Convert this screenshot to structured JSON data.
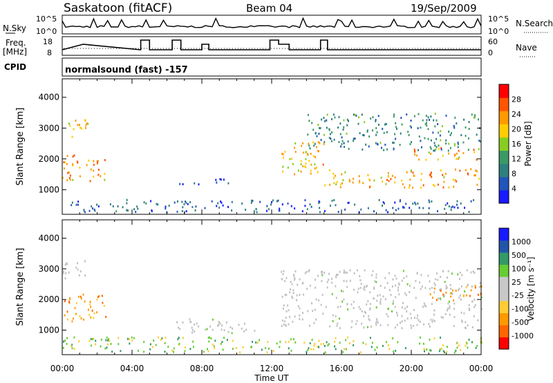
{
  "header": {
    "station": "Saskatoon (fitACF)",
    "beam": "Beam 04",
    "date": "19/Sep/2009"
  },
  "noise_panel": {
    "left_label": "N.Sky",
    "right_label": "N.Search",
    "ticks_left": [
      "10^5",
      "10^0"
    ],
    "ticks_right": [
      "10^5",
      "10^0"
    ]
  },
  "freq_panel": {
    "left_label_line1": "Freq.",
    "left_label_line2": "[MHz]",
    "right_label": "Nave",
    "ticks_left": [
      "18",
      "8"
    ],
    "ticks_right": [
      "60",
      "0"
    ]
  },
  "cpid_label": "CPID",
  "cpid_text": "normalsound (fast) -157",
  "colors": {
    "power_scale": [
      "#1a1aff",
      "#2255bb",
      "#2f7f7f",
      "#3b9966",
      "#88cc22",
      "#ffcc00",
      "#ff9900",
      "#ff5500",
      "#ff0000"
    ],
    "velocity_scale": [
      "#ff0000",
      "#ff6600",
      "#ff9900",
      "#ffcc33",
      "#c8c8c8",
      "#c8c8c8",
      "#66cc33",
      "#339966",
      "#2255aa",
      "#1a1aff"
    ],
    "ground_scatter": "#c0c0c0"
  },
  "chart_data": [
    {
      "type": "heatmap",
      "title": "",
      "xlabel": "Time UT",
      "ylabel": "Slant Range [km]",
      "x_ticks": [
        "00:00",
        "04:00",
        "08:00",
        "12:00",
        "16:00",
        "20:00",
        "00:00"
      ],
      "y_ticks": [
        "1000",
        "2000",
        "3000",
        "4000"
      ],
      "ylim": [
        200,
        4600
      ],
      "colorbar_label": "Power [dB]",
      "colorbar_ticks": [
        "4",
        "8",
        "12",
        "16",
        "20",
        "24",
        "28"
      ],
      "regions": [
        {
          "t0": 0.0,
          "t1": 1.5,
          "r0": 2700,
          "r1": 3300,
          "level": 20
        },
        {
          "t0": 0.0,
          "t1": 2.5,
          "r0": 1300,
          "r1": 2200,
          "level": 22
        },
        {
          "t0": 6.5,
          "t1": 9.5,
          "r0": 1200,
          "r1": 1400,
          "level": 6
        },
        {
          "t0": 12.5,
          "t1": 15.0,
          "r0": 1500,
          "r1": 2700,
          "level": 20
        },
        {
          "t0": 15.0,
          "t1": 24.0,
          "r0": 1100,
          "r1": 1700,
          "level": 22
        },
        {
          "t0": 20.0,
          "t1": 24.0,
          "r0": 2000,
          "r1": 2400,
          "level": 22
        },
        {
          "t0": 14.0,
          "t1": 24.0,
          "r0": 2300,
          "r1": 3500,
          "level": 10
        },
        {
          "t0": 0.0,
          "t1": 24.0,
          "r0": 300,
          "r1": 700,
          "level": 6
        }
      ]
    },
    {
      "type": "heatmap",
      "title": "",
      "xlabel": "Time UT",
      "ylabel": "Slant Range [km]",
      "x_ticks": [
        "00:00",
        "04:00",
        "08:00",
        "12:00",
        "16:00",
        "20:00",
        "00:00"
      ],
      "y_ticks": [
        "1000",
        "2000",
        "3000",
        "4000"
      ],
      "ylim": [
        200,
        4600
      ],
      "colorbar_label": "Velocity [m s⁻¹]",
      "colorbar_ticks": [
        "1000",
        "500",
        "100",
        "25",
        "-25",
        "-100",
        "-500",
        "-1000"
      ],
      "regions": [
        {
          "t0": 0.0,
          "t1": 1.5,
          "r0": 2700,
          "r1": 3300,
          "level": 0
        },
        {
          "t0": 0.0,
          "t1": 2.5,
          "r0": 1300,
          "r1": 2200,
          "level": -400
        },
        {
          "t0": 6.5,
          "t1": 11.0,
          "r0": 900,
          "r1": 1400,
          "level": 0
        },
        {
          "t0": 12.5,
          "t1": 24.0,
          "r0": 1100,
          "r1": 3000,
          "level": 0
        },
        {
          "t0": 21.0,
          "t1": 24.0,
          "r0": 2000,
          "r1": 2500,
          "level": -300
        },
        {
          "t0": 0.0,
          "t1": 24.0,
          "r0": 300,
          "r1": 800,
          "level": 80
        }
      ]
    }
  ]
}
